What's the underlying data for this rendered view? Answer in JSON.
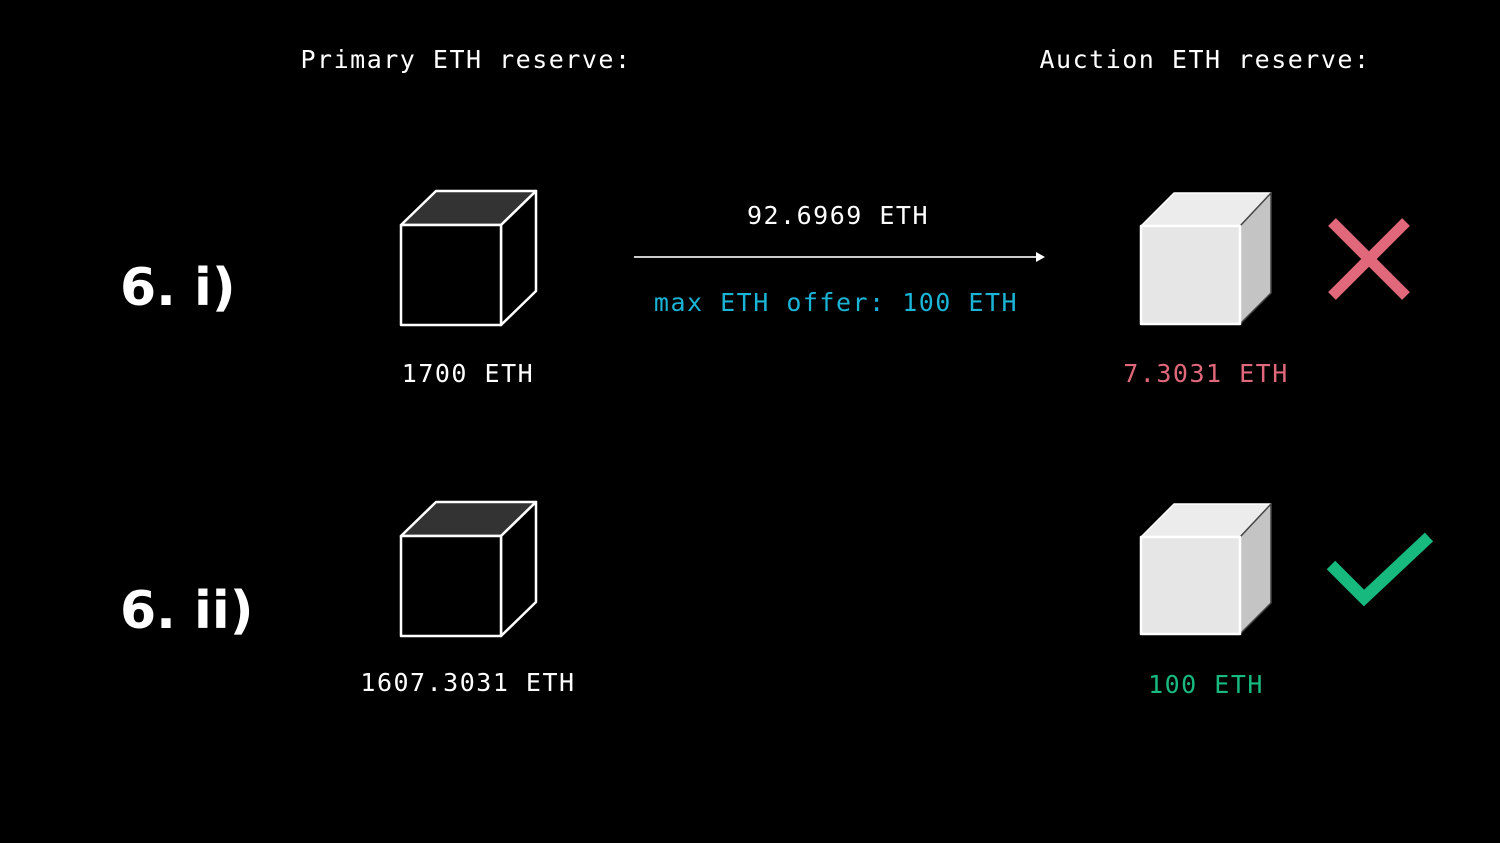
{
  "headers": {
    "primary": "Primary ETH reserve:",
    "auction": "Auction ETH reserve:"
  },
  "colors": {
    "text": "#ffffff",
    "offer": "#1ab4d6",
    "fail": "#e0687a",
    "success": "#17b97f"
  },
  "rows": [
    {
      "step": "6. i)",
      "primary_amount": "1700 ETH",
      "transfer_amount": "92.6969 ETH",
      "offer": "max ETH offer: 100 ETH",
      "auction_amount": "7.3031 ETH",
      "status_icon": "x-mark-icon"
    },
    {
      "step": "6. ii)",
      "primary_amount": "1607.3031 ETH",
      "auction_amount": "100 ETH",
      "status_icon": "checkmark-icon"
    }
  ]
}
